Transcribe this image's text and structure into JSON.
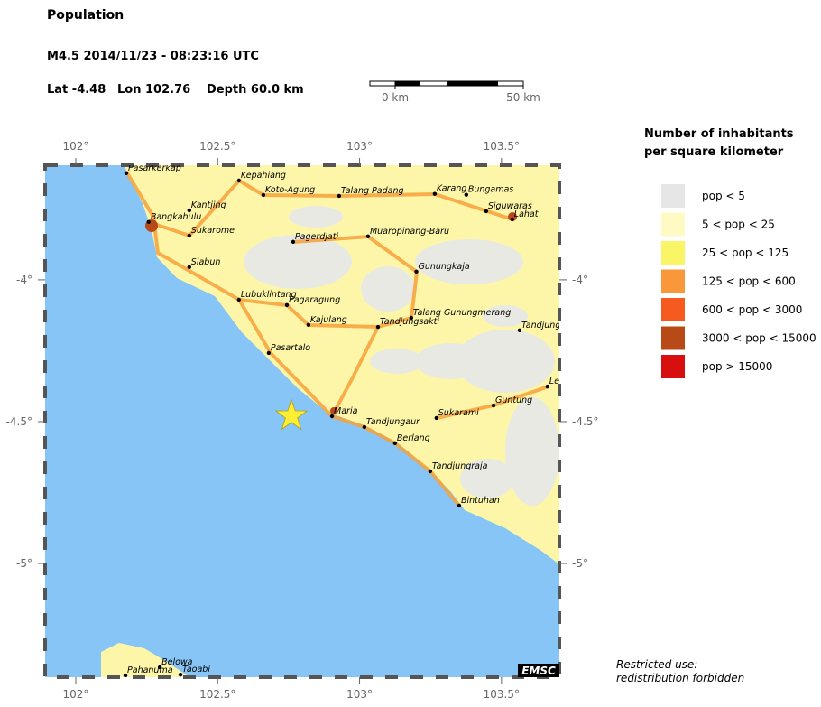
{
  "header": {
    "title": "Population",
    "event": "M4.5  2014/11/23 - 08:23:16 UTC",
    "lat_label": "Lat -4.48",
    "lon_label": "Lon 102.76",
    "depth_label": "Depth  60.0 km"
  },
  "epicenter": {
    "lat": -4.48,
    "lon": 102.76,
    "color": "#ffee33"
  },
  "map": {
    "lonlim": [
      101.892,
      103.704
    ],
    "latlim": [
      -5.401,
      -3.596
    ],
    "xticks": [
      {
        "value": 102,
        "label": "102°"
      },
      {
        "value": 102.5,
        "label": "102.5°"
      },
      {
        "value": 103,
        "label": "103°"
      },
      {
        "value": 103.5,
        "label": "103.5°"
      }
    ],
    "yticks": [
      {
        "value": -4,
        "label": "-4°"
      },
      {
        "value": -4.5,
        "label": "-4.5°"
      },
      {
        "value": -5,
        "label": "-5°"
      }
    ]
  },
  "scale_bar": {
    "start": "0 km",
    "end": "50 km"
  },
  "legend": {
    "title": [
      "Number of inhabitants",
      "per square kilometer"
    ],
    "items": [
      {
        "label": "pop < 5",
        "color": "#e6e6e6"
      },
      {
        "label": "5 < pop < 25",
        "color": "#fdfac4"
      },
      {
        "label": "25 < pop < 125",
        "color": "#faf567"
      },
      {
        "label": "125 < pop < 600",
        "color": "#f8983a"
      },
      {
        "label": "600 < pop < 3000",
        "color": "#f65a1e"
      },
      {
        "label": "3000 < pop < 15000",
        "color": "#b84a17"
      },
      {
        "label": "pop > 15000",
        "color": "#d7100f"
      }
    ]
  },
  "places": [
    {
      "name": "Pasarkerkap",
      "lon": 102.178,
      "lat": -3.624
    },
    {
      "name": "Kepahiang",
      "lon": 102.575,
      "lat": -3.65
    },
    {
      "name": "Koto-Agung",
      "lon": 102.661,
      "lat": -3.701
    },
    {
      "name": "Talang Padang",
      "lon": 102.928,
      "lat": -3.704
    },
    {
      "name": "Karang",
      "lon": 103.265,
      "lat": -3.697
    },
    {
      "name": "Bungamas",
      "lon": 103.376,
      "lat": -3.7
    },
    {
      "name": "Kantjing",
      "lon": 102.4,
      "lat": -3.755
    },
    {
      "name": "Siguwaras",
      "lon": 103.446,
      "lat": -3.758
    },
    {
      "name": "Lahat",
      "lon": 103.538,
      "lat": -3.787
    },
    {
      "name": "Bangkahulu",
      "lon": 102.257,
      "lat": -3.796
    },
    {
      "name": "Sukarome",
      "lon": 102.4,
      "lat": -3.844
    },
    {
      "name": "Pagerdjati",
      "lon": 102.766,
      "lat": -3.866
    },
    {
      "name": "Muaropinang-Baru",
      "lon": 103.03,
      "lat": -3.847
    },
    {
      "name": "Siabun",
      "lon": 102.4,
      "lat": -3.955
    },
    {
      "name": "Gunungkaja",
      "lon": 103.2,
      "lat": -3.971
    },
    {
      "name": "Lubuklintang",
      "lon": 102.575,
      "lat": -4.07
    },
    {
      "name": "Pagaragung",
      "lon": 102.744,
      "lat": -4.089
    },
    {
      "name": "Talang Gunungmerang",
      "lon": 103.182,
      "lat": -4.134
    },
    {
      "name": "Kajulang",
      "lon": 102.82,
      "lat": -4.159
    },
    {
      "name": "Tandjungsakti",
      "lon": 103.065,
      "lat": -4.166
    },
    {
      "name": "Tandjung",
      "lon": 103.564,
      "lat": -4.178
    },
    {
      "name": "Pasartalo",
      "lon": 102.68,
      "lat": -4.258
    },
    {
      "name": "Le",
      "lon": 103.662,
      "lat": -4.376
    },
    {
      "name": "Guntung",
      "lon": 103.472,
      "lat": -4.443
    },
    {
      "name": "Maria",
      "lon": 102.903,
      "lat": -4.481
    },
    {
      "name": "Sukarami",
      "lon": 103.271,
      "lat": -4.487
    },
    {
      "name": "Tandjungaur",
      "lon": 103.017,
      "lat": -4.519
    },
    {
      "name": "Berlang",
      "lon": 103.125,
      "lat": -4.576
    },
    {
      "name": "Tandjungraja",
      "lon": 103.249,
      "lat": -4.675
    },
    {
      "name": "Bintuhan",
      "lon": 103.351,
      "lat": -4.796
    },
    {
      "name": "Belowa",
      "lon": 102.296,
      "lat": -5.366
    },
    {
      "name": "Pahanuma",
      "lon": 102.175,
      "lat": -5.395
    },
    {
      "name": "Taoabi",
      "lon": 102.369,
      "lat": -5.392
    }
  ],
  "footer": {
    "badge": "EMSC",
    "note": [
      "Restricted use:",
      "redistribution forbidden"
    ]
  }
}
